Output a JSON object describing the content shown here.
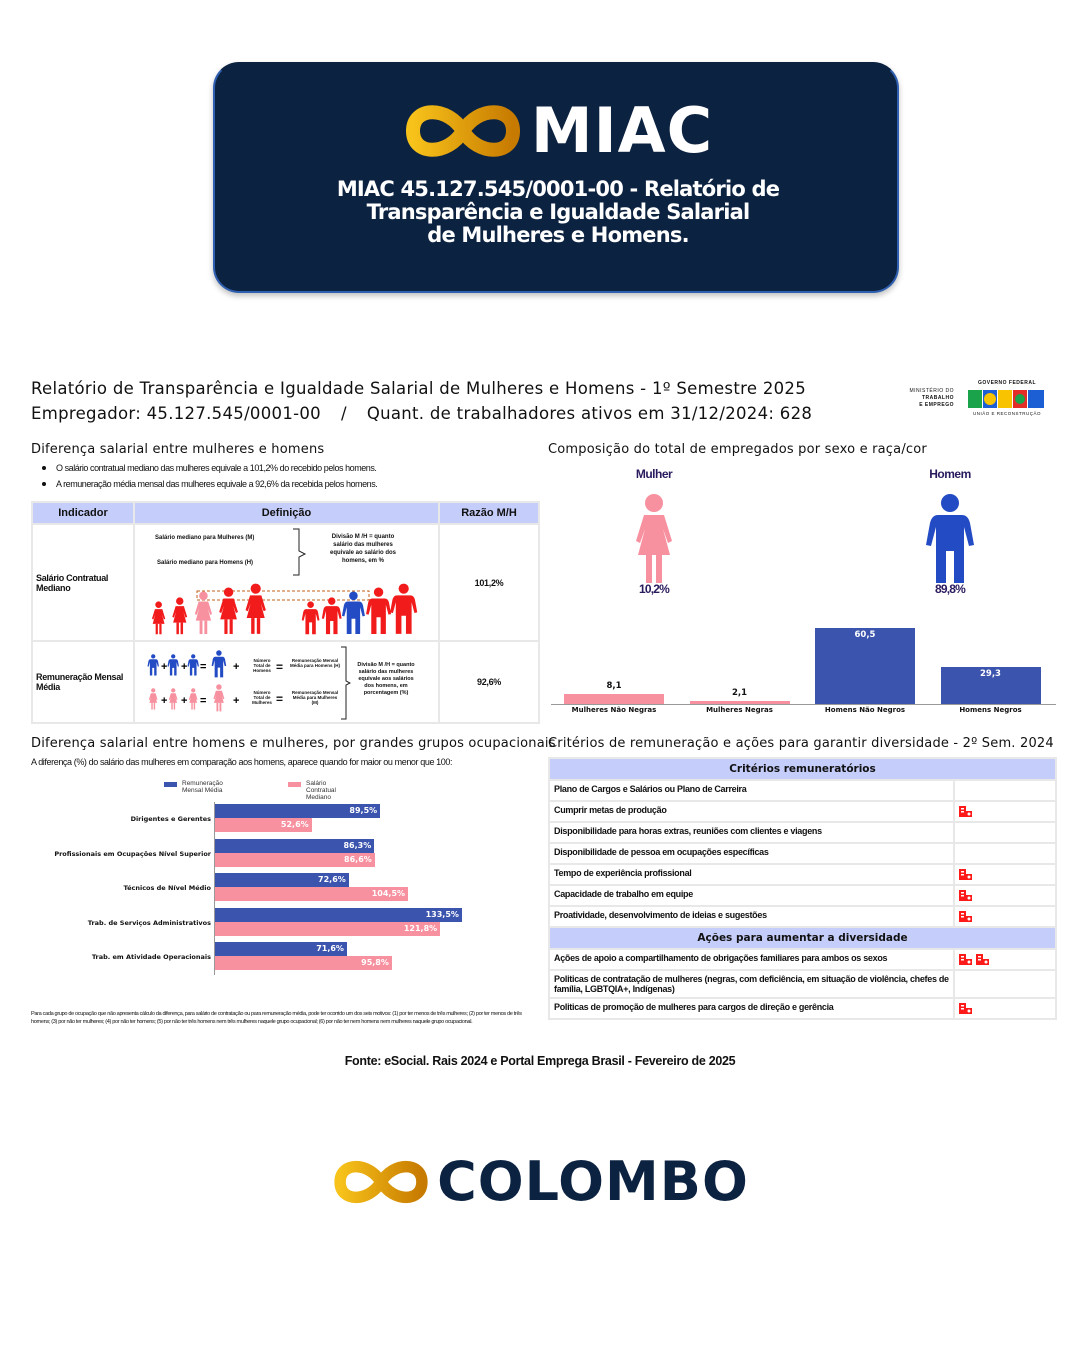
{
  "header": {
    "brand": "MIAC",
    "title_lines": [
      "MIAC 45.127.545/0001-00 - Relatório de",
      "Transparência e Igualdade Salarial",
      "de Mulheres e Homens."
    ]
  },
  "report": {
    "title": "Relatório de Transparência e Igualdade Salarial de Mulheres e Homens - 1º Semestre 2025",
    "employer": "Empregador: 45.127.545/0001-00",
    "separator": "/",
    "workers": "Quant. de trabalhadores ativos em 31/12/2024: 628",
    "gov_logo": {
      "ministry": [
        "MINISTÉRIO DO",
        "TRABALHO",
        "E EMPREGO"
      ],
      "gov": "GOVERNO FEDERAL",
      "brasil": "BRASIL",
      "slogan": "UNIÃO E RECONSTRUÇÃO"
    }
  },
  "salary_diff": {
    "title": "Diferença salarial entre mulheres e homens",
    "bullets": [
      "O salário contratual mediano das mulheres equivale a 101,2% do recebido pelos homens.",
      "A remuneração média mensal das mulheres equivale a 92,6% da recebida pelos homens."
    ],
    "table": {
      "headers": [
        "Indicador",
        "Definição",
        "Razão M/H"
      ],
      "rows": [
        {
          "indicator": "Salário Contratual Mediano",
          "def_a": "Salário mediano para Mulheres (M)",
          "def_b": "Salário mediano para Homens (H)",
          "def_c": "Divisão M /H = quanto salário das mulheres equivale ao salário dos homens, em %",
          "value": "101,2%"
        },
        {
          "indicator": "Remuneração Mensal Média",
          "def_men": "Número Total de Homens",
          "def_men_r": "Remuneração Mensal Média para Homens (H)",
          "def_women": "Número Total de Mulheres",
          "def_women_r": "Remuneração Mensal Média para Mulheres (M)",
          "def_c": "Divisão M /H = quanto salário das mulheres equivale aos salários dos homens, em porcentagem (%)",
          "value": "92,6%"
        }
      ]
    }
  },
  "composition": {
    "title": "Composição do total de empregados por sexo e raça/cor",
    "woman_label": "Mulher",
    "man_label": "Homem",
    "woman_pct": "10,2%",
    "man_pct": "89,8%"
  },
  "occupational": {
    "title": "Diferença salarial entre homens e mulheres, por grandes grupos ocupacionais",
    "subtitle": "A diferença (%) do salário das mulheres em comparação aos homens, aparece quando for maior ou menor que 100:",
    "footnote": "Para cada grupo de ocupação que não apresenta cálculo da diferença, para salário de contratação ou para remuneração média, pode ter ocorrido um dos seis motivos: (1) por ter menos de três mulheres; (2) por ter menos de três homens; (3) por não ter mulheres; (4) por não ter homens; (5) por não ter três homens nem três mulheres naquele grupo ocupacional; (6) por não ter nem homens nem mulheres naquele grupo ocupacional."
  },
  "criteria": {
    "title": "Critérios de remuneração e ações para garantir diversidade - 2º Sem. 2024",
    "section1": "Critérios remuneratórios",
    "items1": [
      {
        "label": "Plano de Cargos e Salários ou Plano de Carreira",
        "icons": 0
      },
      {
        "label": "Cumprir metas de produção",
        "icons": 1
      },
      {
        "label": "Disponibilidade para horas extras, reuniões com clientes e viagens",
        "icons": 0
      },
      {
        "label": "Disponibilidade de pessoa em ocupações específicas",
        "icons": 0
      },
      {
        "label": "Tempo de experiência profissional",
        "icons": 1
      },
      {
        "label": "Capacidade de trabalho em equipe",
        "icons": 1
      },
      {
        "label": "Proatividade, desenvolvimento de ideias e sugestões",
        "icons": 1
      }
    ],
    "section2": "Ações para aumentar a diversidade",
    "items2": [
      {
        "label": "Ações de apoio a compartilhamento de obrigações familiares para ambos os sexos",
        "icons": 2
      },
      {
        "label": "Politicas de contratação de mulheres (negras, com deficiência, em situação de violência, chefes de família, LGBTQIA+, Indígenas)",
        "icons": 0
      },
      {
        "label": "Politicas de promoção de mulheres para cargos de direção e gerência",
        "icons": 1
      }
    ],
    "icon_name": "company-building-icon",
    "icon_color": "#ff1a1a"
  },
  "source": "Fonte: eSocial. Rais 2024 e Portal Emprega Brasil - Fevereiro de 2025",
  "footer": {
    "brand": "COLOMBO"
  },
  "colors": {
    "navy": "#0c2241",
    "gold": "#f2a900",
    "blue": "#3b54ad",
    "pink": "#f7909f",
    "header_bg": "#c5cdfb"
  },
  "chart_data": [
    {
      "type": "bar",
      "orientation": "horizontal",
      "categories": [
        "Dirigentes e Gerentes",
        "Profissionais em Ocupações Nível Superior",
        "Técnicos de Nível Médio",
        "Trab. de Serviços Administrativos",
        "Trab. em Atividade Operacionais"
      ],
      "series": [
        {
          "name": "Remuneração Mensal Média",
          "values": [
            89.5,
            86.3,
            72.6,
            133.5,
            71.6
          ],
          "labels": [
            "89,5%",
            "86,3%",
            "72,6%",
            "133,5%",
            "71,6%"
          ],
          "color": "#3b54ad"
        },
        {
          "name": "Salário Contratual Mediano",
          "values": [
            52.6,
            86.6,
            104.5,
            121.8,
            95.8
          ],
          "labels": [
            "52,6%",
            "86,6%",
            "104,5%",
            "121,8%",
            "95,8%"
          ],
          "color": "#f7909f"
        }
      ],
      "legend": "top",
      "grid": false
    },
    {
      "type": "bar",
      "categories": [
        "Mulheres Não Negras",
        "Mulheres Negras",
        "Homens Não Negros",
        "Homens Negros"
      ],
      "values": [
        8.1,
        2.1,
        60.5,
        29.3
      ],
      "labels": [
        "8,1",
        "2,1",
        "60,5",
        "29,3"
      ],
      "colors": [
        "#f7909f",
        "#f7909f",
        "#3b54ad",
        "#3b54ad"
      ],
      "grid": false
    }
  ]
}
